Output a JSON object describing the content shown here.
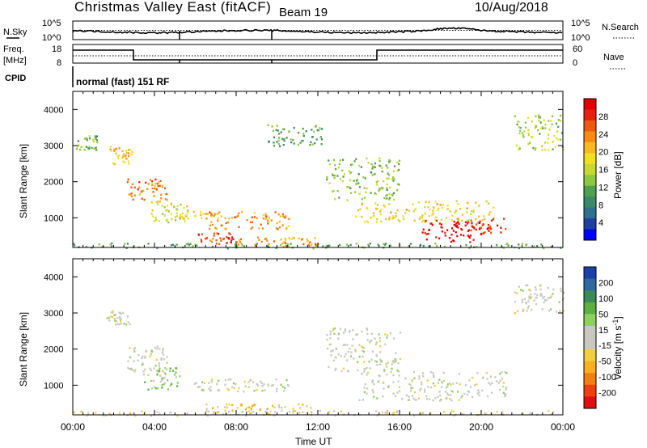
{
  "header": {
    "station": "Christmas Valley East (fitACF)",
    "beam": "Beam 19",
    "date": "10/Aug/2018"
  },
  "top_panels": {
    "nsky_label": "N.Sky",
    "nsearch_label": "N.Search",
    "noise_ticks": [
      "10^5",
      "10^0"
    ],
    "freq_label_1": "Freq.",
    "freq_label_2": "[MHz]",
    "freq_ticks": [
      "18",
      "8"
    ],
    "nave_label": "Nave",
    "nave_ticks": [
      "60",
      "0"
    ],
    "cpid_label": "CPID",
    "cpid_value": "normal (fast) 151 RF"
  },
  "axes": {
    "ylabel": "Slant Range [km]",
    "xlabel": "Time UT",
    "xticks": [
      "00:00",
      "04:00",
      "08:00",
      "12:00",
      "16:00",
      "20:00",
      "00:00"
    ],
    "yticks": [
      "1000",
      "2000",
      "3000",
      "4000"
    ]
  },
  "colors": {
    "power_scale": [
      "#0000ff",
      "#1f3f9f",
      "#2f6f8f",
      "#3a8a6a",
      "#4fa04f",
      "#8dc840",
      "#c8d830",
      "#f0e020",
      "#f8b820",
      "#f88a10",
      "#f05810",
      "#e82010",
      "#e00000"
    ],
    "velocity_scale": [
      "#1a3fa8",
      "#2e6aa0",
      "#3a8a5a",
      "#5ab040",
      "#8cd060",
      "#c8c8c0",
      "#c8c8c0",
      "#f0d040",
      "#f8b020",
      "#f08010",
      "#f04010",
      "#e01010"
    ]
  },
  "chart_data": [
    {
      "type": "heatmap",
      "panel": "power",
      "colorbar_label": "Power [dB]",
      "colorbar_ticks": [
        "4",
        "8",
        "12",
        "16",
        "20",
        "24",
        "28"
      ],
      "x_range_hours": [
        0,
        24
      ],
      "y_range_km": [
        180,
        4500
      ],
      "clusters": [
        {
          "t0": 0.0,
          "t1": 24.0,
          "r0": 180,
          "r1": 320,
          "value": 10
        },
        {
          "t0": 0.1,
          "t1": 1.2,
          "r0": 2900,
          "r1": 3300,
          "value": 12
        },
        {
          "t0": 1.8,
          "t1": 2.9,
          "r0": 2500,
          "r1": 3000,
          "value": 20
        },
        {
          "t0": 2.6,
          "t1": 4.6,
          "r0": 1500,
          "r1": 2100,
          "value": 24
        },
        {
          "t0": 3.8,
          "t1": 5.6,
          "r0": 900,
          "r1": 1500,
          "value": 16
        },
        {
          "t0": 5.2,
          "t1": 7.2,
          "r0": 1000,
          "r1": 1200,
          "value": 20
        },
        {
          "t0": 6.6,
          "t1": 10.6,
          "r0": 700,
          "r1": 1200,
          "value": 22
        },
        {
          "t0": 6.0,
          "t1": 8.0,
          "r0": 300,
          "r1": 600,
          "value": 26
        },
        {
          "t0": 8.0,
          "t1": 12.0,
          "r0": 250,
          "r1": 500,
          "value": 22
        },
        {
          "t0": 9.5,
          "t1": 12.2,
          "r0": 3000,
          "r1": 3600,
          "value": 10
        },
        {
          "t0": 12.4,
          "t1": 16.0,
          "r0": 1500,
          "r1": 2700,
          "value": 12
        },
        {
          "t0": 13.8,
          "t1": 20.6,
          "r0": 900,
          "r1": 1500,
          "value": 18
        },
        {
          "t0": 17.0,
          "t1": 19.6,
          "r0": 350,
          "r1": 950,
          "value": 30
        },
        {
          "t0": 19.4,
          "t1": 21.2,
          "r0": 550,
          "r1": 1000,
          "value": 28
        },
        {
          "t0": 21.6,
          "t1": 24.0,
          "r0": 2900,
          "r1": 3900,
          "value": 14
        }
      ]
    },
    {
      "type": "heatmap",
      "panel": "velocity",
      "colorbar_label": "Velocity [m s^-1]",
      "colorbar_ticks": [
        "200",
        "100",
        "50",
        "15",
        "-15",
        "-50",
        "-100",
        "-200"
      ],
      "x_range_hours": [
        0,
        24
      ],
      "y_range_km": [
        180,
        4500
      ],
      "clusters": [
        {
          "t0": 0.0,
          "t1": 24.0,
          "r0": 180,
          "r1": 320,
          "value": -40
        },
        {
          "t0": 1.6,
          "t1": 2.8,
          "r0": 2700,
          "r1": 3100,
          "value": 0
        },
        {
          "t0": 2.6,
          "t1": 4.6,
          "r0": 1400,
          "r1": 2100,
          "value": 0
        },
        {
          "t0": 3.4,
          "t1": 5.2,
          "r0": 900,
          "r1": 1500,
          "value": 60
        },
        {
          "t0": 5.8,
          "t1": 10.8,
          "r0": 850,
          "r1": 1200,
          "value": 0
        },
        {
          "t0": 6.4,
          "t1": 12.0,
          "r0": 250,
          "r1": 500,
          "value": -70
        },
        {
          "t0": 12.4,
          "t1": 16.0,
          "r0": 1400,
          "r1": 2600,
          "value": 0
        },
        {
          "t0": 14.0,
          "t1": 21.2,
          "r0": 600,
          "r1": 1400,
          "value": 0
        },
        {
          "t0": 21.6,
          "t1": 24.0,
          "r0": 3000,
          "r1": 3800,
          "value": 0
        }
      ]
    }
  ]
}
